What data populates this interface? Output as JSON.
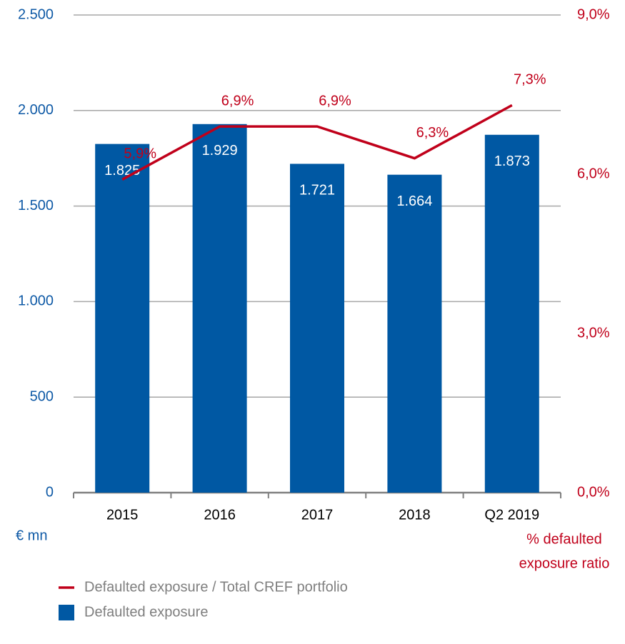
{
  "chart_data": {
    "type": "bar_line",
    "categories": [
      "2015",
      "2016",
      "2017",
      "2018",
      "Q2 2019"
    ],
    "series": [
      {
        "name": "Defaulted exposure",
        "type": "bar",
        "color": "#0058a3",
        "values": [
          1825,
          1929,
          1721,
          1664,
          1873
        ],
        "value_labels": [
          "1.825",
          "1.929",
          "1.721",
          "1.664",
          "1.873"
        ]
      },
      {
        "name": "Defaulted exposure / Total CREF portfolio",
        "type": "line",
        "axis": "y2",
        "color": "#c0001a",
        "values": [
          5.9,
          6.9,
          6.9,
          6.3,
          7.3
        ],
        "value_labels": [
          "5,9%",
          "6,9%",
          "6,9%",
          "6,3%",
          "7,3%"
        ]
      }
    ],
    "y_label": "€ mn",
    "y2_label": [
      "% defaulted",
      "exposure ratio"
    ],
    "ylim": [
      0,
      2500
    ],
    "yticks": [
      0,
      500,
      {
        "value": 1000,
        "label": "1.000"
      },
      {
        "value": 1500,
        "label": "1.500"
      },
      {
        "value": 2000,
        "label": "2.000"
      },
      {
        "value": 2500,
        "label": "2.500"
      }
    ],
    "y2lim": [
      0,
      9
    ],
    "y2ticks": [
      {
        "value": 0,
        "label": "0,0%"
      },
      {
        "value": 3,
        "label": "3,0%"
      },
      {
        "value": 6,
        "label": "6,0%"
      },
      {
        "value": 9,
        "label": "9,0%"
      }
    ],
    "grid": true,
    "legend": "bottom-left"
  }
}
